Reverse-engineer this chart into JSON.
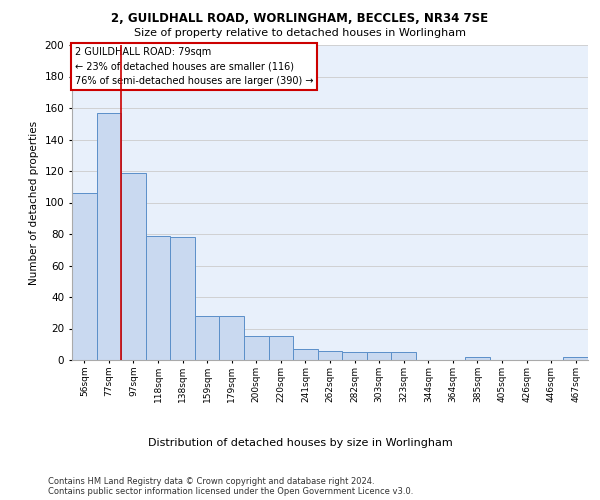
{
  "title_line1": "2, GUILDHALL ROAD, WORLINGHAM, BECCLES, NR34 7SE",
  "title_line2": "Size of property relative to detached houses in Worlingham",
  "xlabel": "Distribution of detached houses by size in Worlingham",
  "ylabel": "Number of detached properties",
  "categories": [
    "56sqm",
    "77sqm",
    "97sqm",
    "118sqm",
    "138sqm",
    "159sqm",
    "179sqm",
    "200sqm",
    "220sqm",
    "241sqm",
    "262sqm",
    "282sqm",
    "303sqm",
    "323sqm",
    "344sqm",
    "364sqm",
    "385sqm",
    "405sqm",
    "426sqm",
    "446sqm",
    "467sqm"
  ],
  "values": [
    106,
    157,
    119,
    79,
    78,
    28,
    28,
    15,
    15,
    7,
    6,
    5,
    5,
    5,
    0,
    0,
    2,
    0,
    0,
    0,
    2
  ],
  "bar_color": "#c9d9f0",
  "bar_edge_color": "#5b8fc9",
  "grid_color": "#cccccc",
  "background_color": "#e8f0fb",
  "annotation_box_text": "2 GUILDHALL ROAD: 79sqm\n← 23% of detached houses are smaller (116)\n76% of semi-detached houses are larger (390) →",
  "annotation_box_color": "#ffffff",
  "annotation_box_edge_color": "#cc0000",
  "vline_color": "#cc0000",
  "footnote1": "Contains HM Land Registry data © Crown copyright and database right 2024.",
  "footnote2": "Contains public sector information licensed under the Open Government Licence v3.0.",
  "ylim": [
    0,
    200
  ],
  "yticks": [
    0,
    20,
    40,
    60,
    80,
    100,
    120,
    140,
    160,
    180,
    200
  ]
}
